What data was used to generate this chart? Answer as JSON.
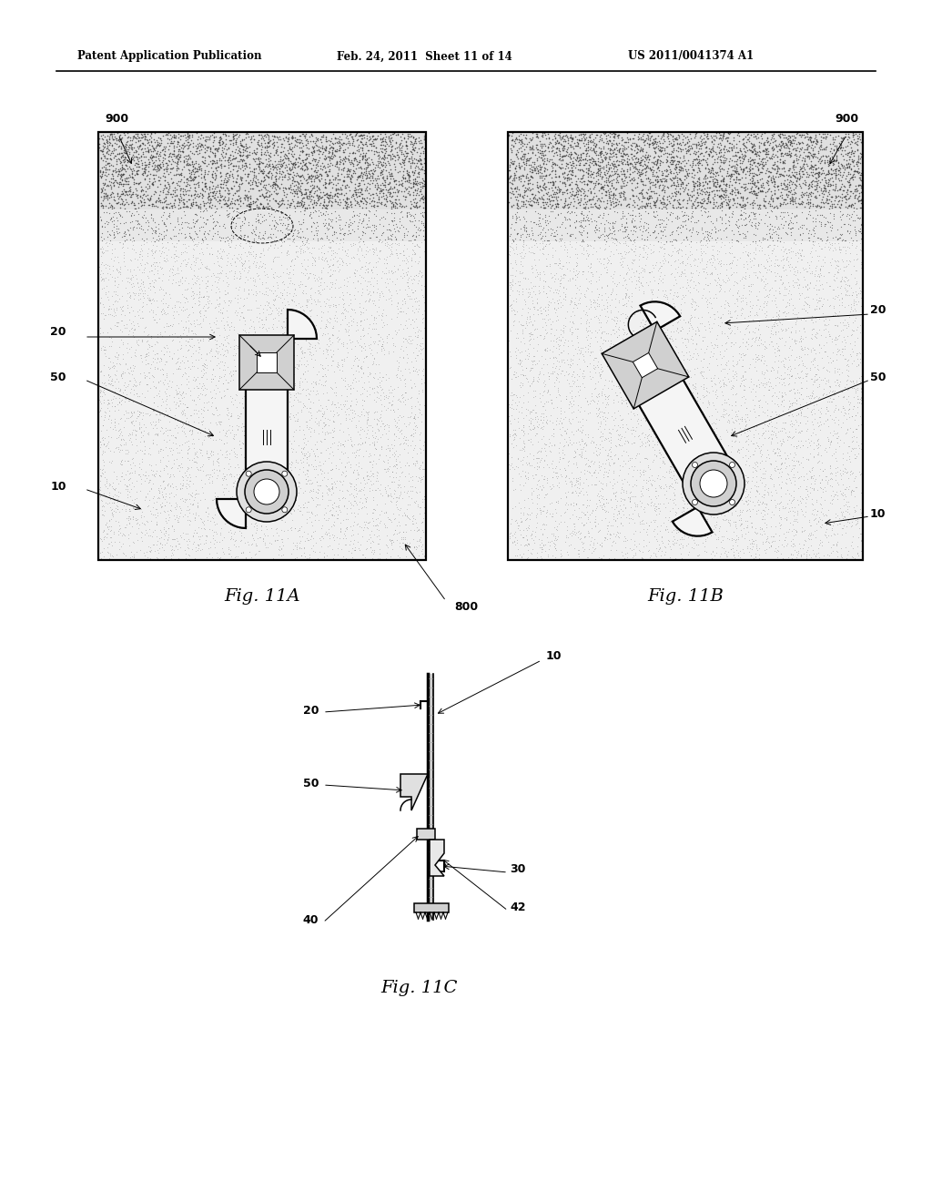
{
  "title_left": "Patent Application Publication",
  "title_mid": "Feb. 24, 2011  Sheet 11 of 14",
  "title_right": "US 2011/0041374 A1",
  "fig11A_label": "Fig. 11A",
  "fig11B_label": "Fig. 11B",
  "fig11C_label": "Fig. 11C",
  "bg_color": "#ffffff",
  "lc": "#000000",
  "top_band_color": "#bbbbbb",
  "dot_color": "#555555",
  "sand_color": "#999999",
  "device_fill": "#f5f5f5",
  "sq_fill": "#dddddd"
}
